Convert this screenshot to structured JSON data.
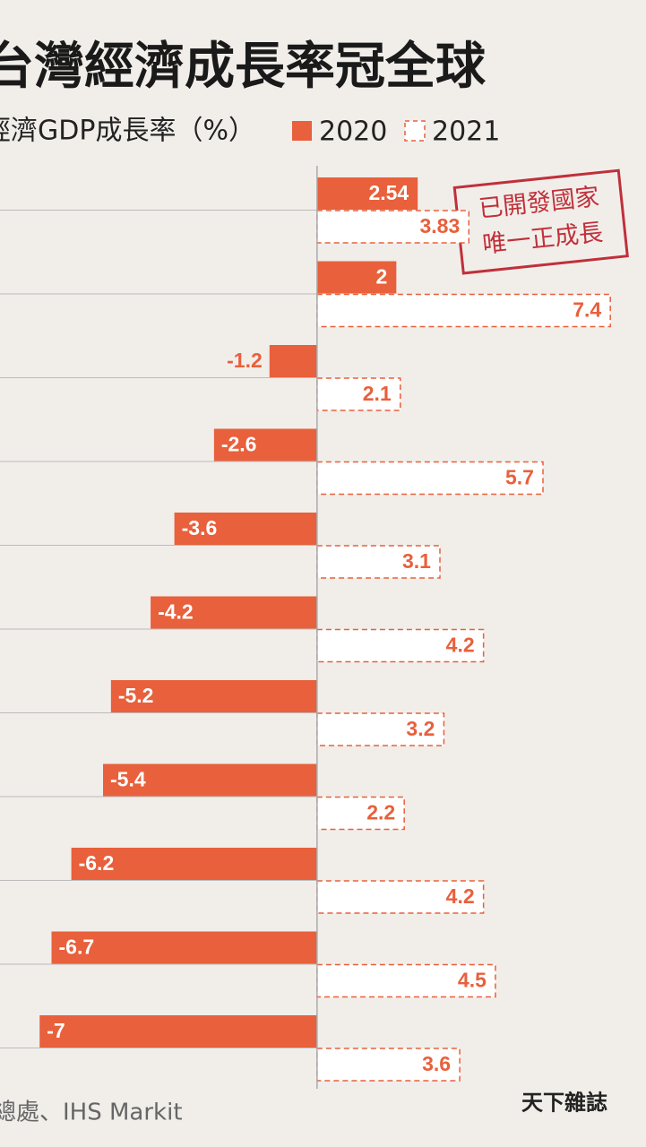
{
  "chart_data": {
    "type": "hbar",
    "title": "台灣經濟成長率冠全球",
    "subtitle": "經濟GDP成長率（%）",
    "categories": [
      null,
      null,
      null,
      null,
      null,
      null,
      null,
      null,
      null,
      null,
      null
    ],
    "series": [
      {
        "name": "2020",
        "color": "#e8603c",
        "values": [
          2.54,
          2,
          -1.2,
          -2.6,
          -3.6,
          -4.2,
          -5.2,
          -5.4,
          -6.2,
          -6.7,
          -7
        ]
      },
      {
        "name": "2021",
        "color": "#ffffff",
        "values": [
          3.83,
          7.4,
          2.1,
          5.7,
          3.1,
          4.2,
          3.2,
          2.2,
          4.2,
          4.5,
          3.6
        ]
      }
    ],
    "xlim": [
      -8,
      8.3
    ],
    "annotation": [
      "已開發國家",
      "唯一正成長"
    ],
    "source": "總處、IHS Markit",
    "logo": "天下雜誌"
  }
}
